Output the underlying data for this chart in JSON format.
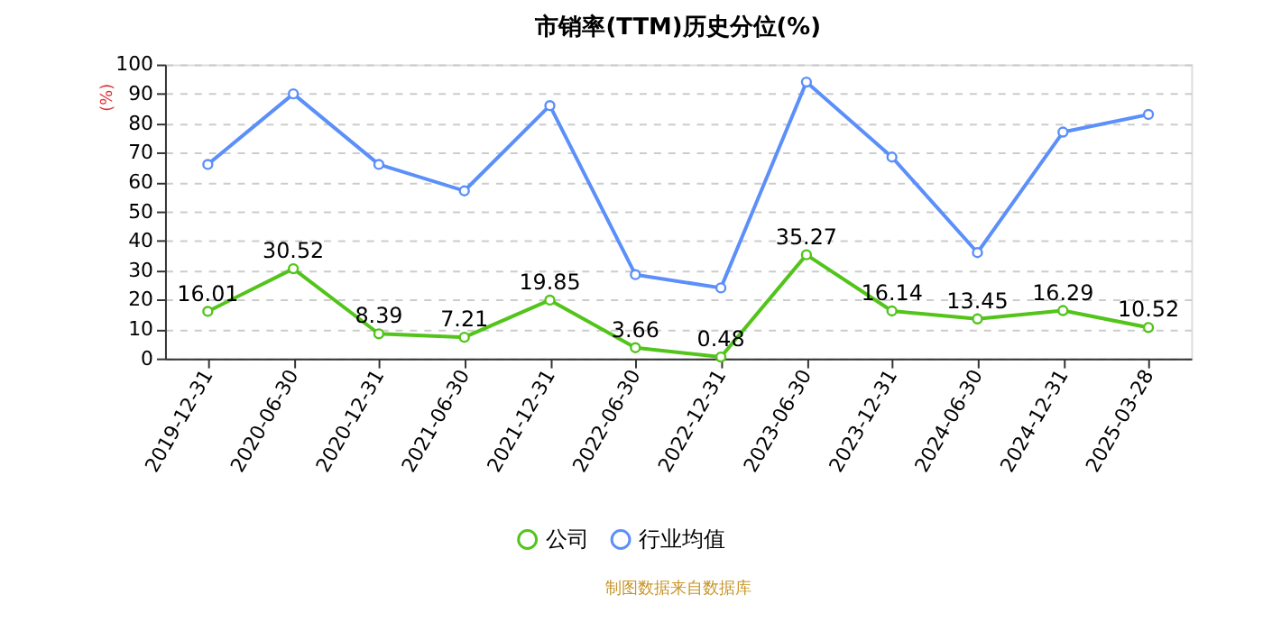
{
  "chart_data": {
    "type": "line",
    "title": "市销率(TTM)历史分位(%)",
    "ylabel": "(%)",
    "categories": [
      "2019-12-31",
      "2020-06-30",
      "2020-12-31",
      "2021-06-30",
      "2021-12-31",
      "2022-06-30",
      "2022-12-31",
      "2023-06-30",
      "2023-12-31",
      "2024-06-30",
      "2024-12-31",
      "2025-03-28"
    ],
    "series": [
      {
        "name": "公司",
        "color": "#52c41a",
        "values": [
          16.01,
          30.52,
          8.39,
          7.21,
          19.85,
          3.66,
          0.48,
          35.27,
          16.14,
          13.45,
          16.29,
          10.52
        ],
        "value_labels": [
          "16.01",
          "30.52",
          "8.39",
          "7.21",
          "19.85",
          "3.66",
          "0.48",
          "35.27",
          "16.14",
          "13.45",
          "16.29",
          "10.52"
        ]
      },
      {
        "name": "行业均值",
        "color": "#5b8ff9",
        "values": [
          66,
          90,
          66,
          57,
          86,
          28.5,
          24,
          94,
          68.5,
          36,
          77,
          83
        ]
      }
    ],
    "ylim": [
      0,
      100
    ],
    "yticks": [
      0,
      10,
      20,
      30,
      40,
      50,
      60,
      70,
      80,
      90,
      100
    ],
    "grid": "y",
    "legend": "bottom",
    "marker": "circle",
    "annotations": [
      "制图数据来自数据库"
    ]
  }
}
